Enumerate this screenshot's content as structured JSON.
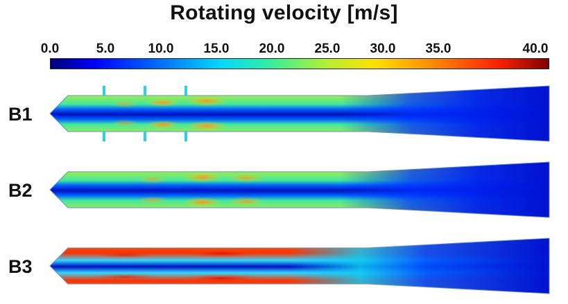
{
  "figure": {
    "title": "Rotating velocity [m/s]"
  },
  "colorbar": {
    "ticks": [
      "0.0",
      "5.0",
      "10.0",
      "15.0",
      "20.0",
      "25.0",
      "30.0",
      "35.0",
      "40.0"
    ],
    "min": 0,
    "max": 40,
    "colormap": "jet"
  },
  "cases": [
    {
      "label": "B1"
    },
    {
      "label": "B2"
    },
    {
      "label": "B3"
    }
  ]
}
